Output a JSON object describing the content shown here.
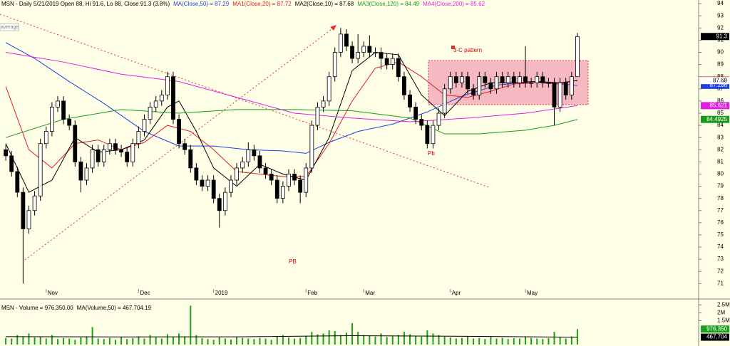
{
  "chart_data": [
    {
      "type": "candlestick",
      "title": "MSN - Daily 5/21/2019 Open 88, Hi 91.6, Lo 88, Close 91.3 (3.8%)",
      "note": "average",
      "annotations": [
        "3-C pattern",
        "Pb",
        "PB"
      ],
      "last_badge": "91.3",
      "up_color": "#ffffff",
      "down_color": "#000000",
      "x": [
        0,
        1,
        2,
        3,
        4,
        5,
        6,
        7,
        8,
        9,
        10,
        11,
        12,
        13,
        14,
        15,
        16,
        17,
        18,
        19,
        20,
        21,
        22,
        23,
        24,
        25,
        26,
        27,
        28,
        29,
        30,
        31,
        32,
        33,
        34,
        35,
        36,
        37,
        38,
        39,
        40,
        41,
        42,
        43,
        44,
        45,
        46,
        47,
        48,
        49,
        50,
        51,
        52,
        53,
        54,
        55,
        56,
        57,
        58,
        59,
        60,
        61,
        62,
        63,
        64,
        65,
        66,
        67,
        68,
        69,
        70,
        71,
        72,
        73,
        74,
        75,
        76,
        77,
        78,
        79,
        80,
        81,
        82,
        83,
        84,
        85,
        86,
        87,
        88,
        89,
        90,
        91,
        92,
        93,
        94,
        95,
        96,
        97,
        98,
        99
      ],
      "open": [
        82,
        81.5,
        80.2,
        78.5,
        75.5,
        77,
        78.2,
        82.5,
        83.5,
        85.5,
        86,
        84.5,
        84,
        81,
        79.5,
        80.5,
        82,
        81,
        82,
        82.5,
        82,
        81.8,
        81,
        82.5,
        83.5,
        84.5,
        85.5,
        86,
        86.5,
        88,
        84.5,
        82.5,
        82,
        80.5,
        79.5,
        79,
        79.5,
        78,
        77,
        78.5,
        79.5,
        80.5,
        81,
        82,
        81.5,
        80.5,
        80,
        79.5,
        78,
        79,
        80,
        79.5,
        78.5,
        80.5,
        84,
        85.5,
        86,
        88,
        90,
        91.5,
        90.5,
        89.5,
        90,
        90.5,
        90,
        90,
        89.5,
        89,
        89.5,
        88,
        86.5,
        85.5,
        84.5,
        84,
        82.5,
        84,
        85,
        87,
        88,
        87.5,
        88,
        87,
        86.5,
        88,
        87.5,
        87,
        88,
        87.5,
        88,
        87.5,
        88,
        87.5,
        87.5,
        88,
        87.5,
        87.5,
        85.5,
        87.5,
        86.5,
        88
      ],
      "high": [
        82.4,
        81.9,
        80.6,
        78.9,
        77.4,
        78.6,
        82.9,
        83.9,
        85.9,
        86.4,
        86.4,
        84.9,
        84.4,
        81.4,
        80.9,
        82.4,
        82.4,
        82.4,
        82.9,
        82.9,
        82.4,
        82.2,
        82.9,
        83.9,
        84.9,
        85.9,
        86.4,
        86.9,
        88.4,
        88.4,
        84.9,
        82.9,
        82.4,
        80.9,
        79.9,
        79.9,
        79.9,
        78.4,
        78.9,
        79.9,
        80.9,
        81.4,
        82.6,
        82.4,
        81.9,
        80.9,
        80.4,
        79.9,
        79.4,
        80.4,
        80.4,
        79.9,
        80.9,
        84.4,
        85.9,
        86.4,
        88.4,
        90.4,
        92,
        91.9,
        90.9,
        91.5,
        90.9,
        91.4,
        90.4,
        90.4,
        89.9,
        89.9,
        89.9,
        88.4,
        86.9,
        85.9,
        84.9,
        84.4,
        84.4,
        85.4,
        87.4,
        88.4,
        88.4,
        88.4,
        88.4,
        87.4,
        88.4,
        88.4,
        87.9,
        88.4,
        88.4,
        88.4,
        88.4,
        88.4,
        90.5,
        87.9,
        88.4,
        88.4,
        87.9,
        87.9,
        87.9,
        87.9,
        88.4,
        91.6
      ],
      "low": [
        81.1,
        79.8,
        78.1,
        71,
        75.1,
        76.6,
        77.8,
        82.1,
        83.1,
        85.1,
        84.1,
        83.6,
        80.6,
        78.5,
        79.1,
        80.1,
        80.6,
        80.6,
        81.6,
        81.6,
        81.4,
        80.6,
        80.6,
        82.1,
        83.1,
        84.1,
        85.1,
        85.6,
        86.1,
        84.1,
        82.1,
        81.6,
        80.1,
        79.1,
        78.6,
        78.6,
        77.6,
        75.6,
        76.6,
        78.1,
        79.1,
        80.1,
        80.6,
        81.1,
        80.1,
        79.6,
        79.1,
        77.6,
        77.6,
        78.6,
        79.1,
        77.6,
        78.1,
        80.1,
        83.6,
        85.1,
        85.6,
        87.6,
        89.6,
        90.1,
        89.1,
        89.1,
        89.6,
        89.6,
        89.6,
        88.6,
        88.6,
        88.6,
        87.6,
        86.1,
        85.1,
        84.1,
        83.6,
        82.1,
        82.1,
        83.6,
        84.6,
        86.6,
        87.1,
        87.1,
        86.6,
        86.1,
        86.1,
        87.1,
        86.6,
        86.6,
        87.1,
        87.1,
        87.1,
        87.1,
        87.1,
        87.1,
        87.1,
        87.1,
        87.1,
        84,
        85.1,
        86.1,
        86.1,
        88
      ],
      "close": [
        81.5,
        80.2,
        78.5,
        75.5,
        77,
        78.2,
        82.5,
        83.5,
        85.5,
        86,
        84.5,
        84,
        81,
        79.5,
        80.5,
        82,
        81,
        82,
        82.5,
        82,
        81.8,
        81,
        82.5,
        83.5,
        84.5,
        85.5,
        86,
        86.5,
        88,
        84.5,
        82.5,
        82,
        80.5,
        79.5,
        79,
        79.5,
        78,
        77,
        78.5,
        79.5,
        80.5,
        81,
        82,
        81.5,
        80.5,
        80,
        79.5,
        78,
        79,
        80,
        79.5,
        78.5,
        80.5,
        84,
        85.5,
        86,
        88,
        90,
        91.5,
        90.5,
        89.5,
        90,
        90.5,
        90,
        90,
        89.5,
        89,
        89.5,
        88,
        86.5,
        85.5,
        84.5,
        84,
        82.5,
        84,
        85,
        87,
        88,
        87.5,
        88,
        87,
        86.5,
        88,
        87.5,
        87,
        88,
        87.5,
        88,
        87.5,
        88,
        87.5,
        87.5,
        88,
        87.5,
        87.5,
        85.5,
        87.5,
        86.5,
        88,
        91.3
      ],
      "series": [
        {
          "name": "MA(Close,50) = 87.29",
          "color": "#1f3fe0",
          "badge": "87.286",
          "badge_text": "#ffffff",
          "x": [
            0,
            5,
            11,
            17,
            24,
            30,
            36,
            42,
            48,
            52,
            56,
            61,
            67,
            73,
            79,
            85,
            91,
            99
          ],
          "values": [
            90.8,
            89.5,
            87.6,
            85.8,
            83.5,
            82.3,
            82.3,
            82,
            81.9,
            81.7,
            82.6,
            83.5,
            84.1,
            85.1,
            86.4,
            87.3,
            87.6,
            87.29
          ]
        },
        {
          "name": "MA1(Close,20) = 87.72",
          "color": "#e02020",
          "badge": "87.72",
          "badge_text": "#000000",
          "x": [
            0,
            4,
            8,
            12,
            16,
            20,
            24,
            28,
            32,
            36,
            40,
            44,
            48,
            52,
            56,
            60,
            64,
            68,
            72,
            76,
            80,
            84,
            88,
            92,
            96,
            99
          ],
          "values": [
            87.2,
            82,
            80.5,
            82.5,
            82.8,
            82,
            82.6,
            84,
            83.5,
            82,
            80.2,
            80,
            79.8,
            79.8,
            82.5,
            86,
            88.7,
            89.2,
            88,
            86.5,
            86.3,
            86.8,
            87.4,
            87.5,
            87.4,
            87.72
          ]
        },
        {
          "name": "MA2(Close,10) = 87.68",
          "color": "#000000",
          "badge": "87.68",
          "badge_text": "#000000",
          "badge_fill": "#ffffff",
          "x": [
            0,
            4,
            8,
            12,
            16,
            20,
            24,
            28,
            30,
            33,
            36,
            40,
            44,
            48,
            52,
            56,
            60,
            64,
            68,
            72,
            76,
            80,
            84,
            88,
            92,
            96,
            99
          ],
          "values": [
            82.5,
            78.5,
            79.5,
            83,
            81.8,
            82,
            82.8,
            85.5,
            86,
            83.5,
            80.5,
            79,
            80.8,
            80,
            79.5,
            83,
            88.5,
            90,
            89.8,
            86.5,
            84.8,
            86.8,
            87.5,
            87.5,
            87.6,
            87.5,
            87.68
          ]
        },
        {
          "name": "MA3(Close,120) = 84.49",
          "color": "#1a9a1a",
          "badge": "84.4925",
          "badge_text": "#ffffff",
          "x": [
            0,
            10,
            20,
            30,
            40,
            50,
            60,
            70,
            76,
            82,
            90,
            95,
            99
          ],
          "values": [
            83,
            84.5,
            85.3,
            85,
            85.3,
            85.3,
            85.2,
            84.6,
            83.3,
            83.3,
            83.6,
            84,
            84.49
          ]
        },
        {
          "name": "MA4(Close,200) = 85.62",
          "color": "#e020e0",
          "badge": "85.621",
          "badge_text": "#ffffff",
          "x": [
            0,
            10,
            20,
            30,
            40,
            50,
            60,
            70,
            80,
            90,
            99
          ],
          "values": [
            90,
            89.2,
            88.2,
            87.6,
            86.3,
            85,
            84.6,
            84.3,
            84.6,
            85,
            85.62
          ]
        }
      ],
      "xlim": [
        -1,
        120
      ],
      "xticks": [
        {
          "value": 7,
          "label": "Nov"
        },
        {
          "value": 23,
          "label": "Dec"
        },
        {
          "value": 36,
          "label": "2019"
        },
        {
          "value": 52,
          "label": "Feb"
        },
        {
          "value": 62,
          "label": "Mar"
        },
        {
          "value": 77,
          "label": "Apr"
        },
        {
          "value": 90,
          "label": "May"
        }
      ],
      "ylim": [
        70.2,
        94.3
      ],
      "yticks": [
        71,
        72,
        73,
        74,
        75,
        76,
        77,
        78,
        79,
        80,
        81,
        82,
        83,
        84,
        85,
        86,
        87,
        88,
        89,
        90,
        91,
        92,
        93,
        94
      ]
    },
    {
      "type": "bar",
      "x": [
        0,
        1,
        2,
        3,
        4,
        5,
        6,
        7,
        8,
        9,
        10,
        11,
        12,
        13,
        14,
        15,
        16,
        17,
        18,
        19,
        20,
        21,
        22,
        23,
        24,
        25,
        26,
        27,
        28,
        29,
        30,
        31,
        32,
        33,
        34,
        35,
        36,
        37,
        38,
        39,
        40,
        41,
        42,
        43,
        44,
        45,
        46,
        47,
        48,
        49,
        50,
        51,
        52,
        53,
        54,
        55,
        56,
        57,
        58,
        59,
        60,
        61,
        62,
        63,
        64,
        65,
        66,
        67,
        68,
        69,
        70,
        71,
        72,
        73,
        74,
        75,
        76,
        77,
        78,
        79,
        80,
        81,
        82,
        83,
        84,
        85,
        86,
        87,
        88,
        89,
        90,
        91,
        92,
        93,
        94,
        95,
        96,
        97,
        98,
        99
      ],
      "series": [
        {
          "name": "MSN - Volume = 976,350.00",
          "color": "#1aa01a",
          "badge": "976,350",
          "badge_text": "#ffffff",
          "values": [
            420000,
            380000,
            600000,
            520000,
            700000,
            450000,
            500000,
            380000,
            600000,
            350000,
            420000,
            380000,
            300000,
            450000,
            520000,
            1100000,
            380000,
            350000,
            420000,
            300000,
            480000,
            350000,
            400000,
            520000,
            380000,
            600000,
            450000,
            380000,
            650000,
            480000,
            700000,
            520000,
            2450000,
            600000,
            400000,
            350000,
            300000,
            450000,
            380000,
            320000,
            500000,
            420000,
            380000,
            350000,
            420000,
            380000,
            300000,
            520000,
            600000,
            450000,
            380000,
            420000,
            550000,
            800000,
            650000,
            700000,
            900000,
            850000,
            600000,
            750000,
            1350000,
            800000,
            600000,
            550000,
            500000,
            700000,
            480000,
            520000,
            600000,
            800000,
            650000,
            550000,
            500000,
            900000,
            700000,
            600000,
            500000,
            450000,
            380000,
            420000,
            500000,
            380000,
            420000,
            350000,
            480000,
            380000,
            420000,
            350000,
            400000,
            380000,
            500000,
            420000,
            380000,
            350000,
            400000,
            800000,
            450000,
            380000,
            520000,
            976350
          ]
        },
        {
          "name": "MA(Volume,50) = 467,704.19",
          "color": "#000000",
          "badge": "467,704",
          "badge_text": "#ffffff",
          "x": [
            0,
            20,
            40,
            60,
            80,
            99
          ],
          "values": [
            500000,
            480000,
            490000,
            560000,
            520000,
            467704
          ]
        }
      ],
      "xlim": [
        -1,
        120
      ],
      "ylim": [
        0,
        2600000
      ],
      "yticks": [
        {
          "value": 1500000,
          "label": "1.5M"
        },
        {
          "value": 2000000,
          "label": "2M"
        },
        {
          "value": 2500000,
          "label": "2.5M"
        }
      ]
    }
  ]
}
